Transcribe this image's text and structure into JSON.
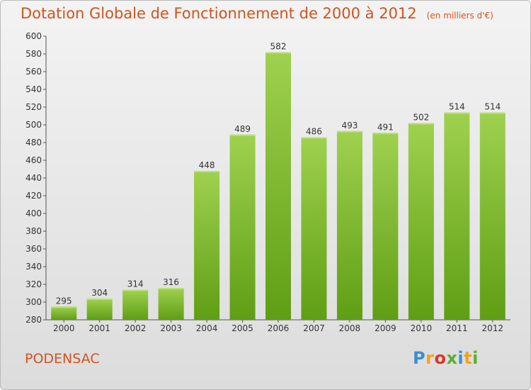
{
  "header": {
    "title": "Dotation Globale de Fonctionnement de 2000 à 2012",
    "subtitle": "(en milliers d'€)"
  },
  "commune": "PODENSAC",
  "logo": {
    "text": "Proxiti",
    "letters": [
      "P",
      "r",
      "o",
      "x",
      "i",
      "t",
      "i"
    ]
  },
  "colors": {
    "title": "#d2531e",
    "bar_top": "#9fd14f",
    "bar_bottom": "#5f9e14"
  },
  "chart_data": {
    "type": "bar",
    "title": "Dotation Globale de Fonctionnement de 2000 à 2012",
    "subtitle": "(en milliers d'€)",
    "categories": [
      "2000",
      "2001",
      "2002",
      "2003",
      "2004",
      "2005",
      "2006",
      "2007",
      "2008",
      "2009",
      "2010",
      "2011",
      "2012"
    ],
    "values": [
      295,
      304,
      314,
      316,
      448,
      489,
      582,
      486,
      493,
      491,
      502,
      514,
      514
    ],
    "ylim": [
      280,
      600
    ],
    "yticks": [
      280,
      300,
      320,
      340,
      360,
      380,
      400,
      420,
      440,
      460,
      480,
      500,
      520,
      540,
      560,
      580,
      600
    ],
    "grid": false,
    "data_labels": true
  }
}
